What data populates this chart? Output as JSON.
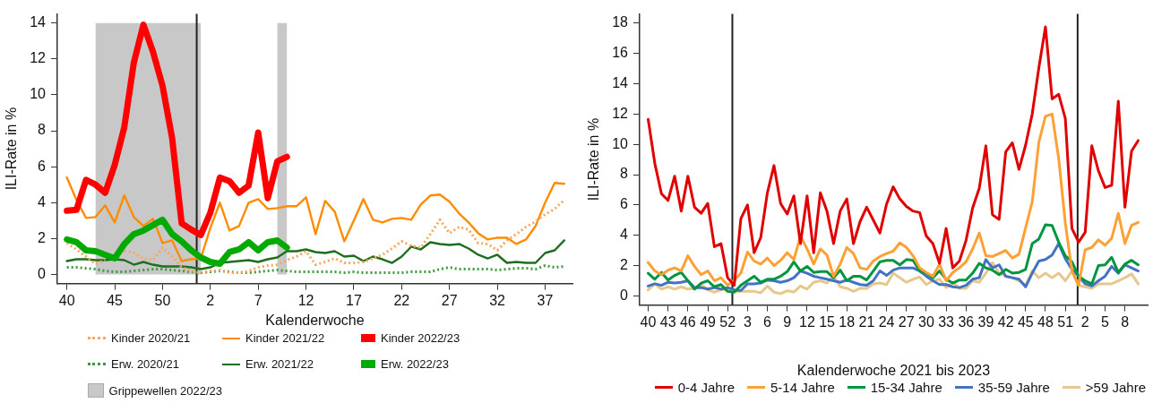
{
  "chart_data": [
    {
      "type": "line",
      "ylabel": "ILI-Rate in %",
      "xlabel": "Kalenderwoche",
      "legend": "bottom",
      "grid": false,
      "marker": "none",
      "x": [
        "2020-09-28",
        "2020-10-05",
        "2020-10-12",
        "2020-10-19",
        "2020-10-26",
        "2020-11-02",
        "2020-11-09",
        "2020-11-16",
        "2020-11-23",
        "2020-11-30",
        "2020-12-07",
        "2020-12-14",
        "2020-12-21",
        "2020-12-28",
        "2021-01-04",
        "2021-01-11",
        "2021-01-18",
        "2021-01-25",
        "2021-02-01",
        "2021-02-08",
        "2021-02-15",
        "2021-02-22",
        "2021-03-01",
        "2021-03-08",
        "2021-03-15",
        "2021-03-22",
        "2021-03-29",
        "2021-04-05",
        "2021-04-12",
        "2021-04-19",
        "2021-04-26",
        "2021-05-03",
        "2021-05-10",
        "2021-05-17",
        "2021-05-24",
        "2021-05-31",
        "2021-06-07",
        "2021-06-14",
        "2021-06-21",
        "2021-06-28",
        "2021-07-05",
        "2021-07-12",
        "2021-07-19",
        "2021-07-26",
        "2021-08-02",
        "2021-08-09",
        "2021-08-16",
        "2021-08-23",
        "2021-08-30",
        "2021-09-06",
        "2021-09-13",
        "2021-09-20",
        "2021-09-27"
      ],
      "xlim": [
        "2020-09-21",
        "2021-10-03"
      ],
      "xticks": [
        {
          "value": "2020-09-28",
          "label": "40"
        },
        {
          "value": "2020-11-02",
          "label": "45"
        },
        {
          "value": "2020-12-07",
          "label": "50"
        },
        {
          "value": "2021-01-11",
          "label": "2"
        },
        {
          "value": "2021-02-15",
          "label": "7"
        },
        {
          "value": "2021-03-22",
          "label": "12"
        },
        {
          "value": "2021-04-26",
          "label": "17"
        },
        {
          "value": "2021-05-31",
          "label": "22"
        },
        {
          "value": "2021-07-05",
          "label": "27"
        },
        {
          "value": "2021-08-09",
          "label": "32"
        },
        {
          "value": "2021-09-13",
          "label": "37"
        }
      ],
      "ylim": [
        -0.5,
        14.5
      ],
      "yticks": [
        0,
        2,
        4,
        6,
        8,
        10,
        12,
        14
      ],
      "series": [
        {
          "name": "Kinder 2020/21",
          "color": "#f7a860",
          "line_style": "dotted",
          "values": [
            1.75,
            1.4,
            1.0,
            0.6,
            0.8,
            null,
            1.3,
            1.2,
            0.9,
            0.8,
            1.5,
            1.0,
            0.4,
            0.2,
            0.1,
            0.2,
            0.25,
            0.1,
            0.1,
            0.2,
            0.4,
            0.5,
            0.55,
            0.8,
            1.0,
            1.3,
            0.55,
            0.7,
            0.9,
            0.65,
            0.65,
            0.7,
            0.9,
            1.1,
            1.45,
            1.85,
            1.6,
            1.5,
            2.25,
            3.05,
            2.3,
            2.65,
            2.5,
            1.75,
            1.7,
            1.35,
            1.9,
            2.25,
            2.65,
            2.95,
            3.35,
            3.65,
            4.15
          ]
        },
        {
          "name": "Kinder 2021/22",
          "color": "#ff8c00",
          "line_style": "solid",
          "values": [
            5.4,
            4.15,
            3.15,
            3.2,
            3.85,
            2.9,
            4.4,
            3.2,
            2.7,
            3.1,
            1.75,
            1.9,
            0.75,
            0.85,
            0.9,
            2.6,
            4.0,
            2.45,
            2.7,
            4.0,
            4.2,
            3.65,
            3.7,
            3.8,
            3.8,
            4.3,
            2.25,
            4.1,
            3.5,
            1.85,
            3.0,
            4.2,
            3.05,
            2.9,
            3.1,
            3.15,
            3.05,
            3.9,
            4.4,
            4.45,
            4.05,
            3.4,
            2.9,
            2.3,
            1.95,
            2.05,
            2.05,
            1.7,
            1.95,
            2.7,
            4.0,
            5.1,
            5.05
          ]
        },
        {
          "name": "Kinder 2022/23",
          "color": "#ff0000",
          "line_style": "solid",
          "values": [
            3.55,
            3.6,
            5.27,
            5.0,
            4.55,
            6.1,
            8.2,
            11.8,
            13.9,
            12.4,
            10.5,
            7.6,
            2.85,
            2.5,
            2.2,
            3.45,
            5.4,
            5.2,
            4.55,
            4.95,
            7.9,
            4.25,
            6.3,
            6.55,
            null,
            null,
            null,
            null,
            null,
            null,
            null,
            null,
            null,
            null,
            null,
            null,
            null,
            null,
            null,
            null,
            null,
            null,
            null,
            null,
            null,
            null,
            null,
            null,
            null,
            null,
            null,
            null,
            null
          ]
        },
        {
          "name": "Erw. 2020/21",
          "color": "#3c9a3c",
          "line_style": "dotted",
          "values": [
            0.4,
            0.4,
            0.35,
            0.3,
            0.2,
            0.15,
            0.15,
            0.2,
            0.25,
            0.3,
            0.3,
            0.25,
            0.2,
            0.15,
            0.1,
            0.15,
            0.2,
            0.15,
            0.1,
            0.1,
            0.15,
            0.2,
            0.25,
            0.2,
            0.15,
            0.15,
            0.15,
            0.15,
            0.15,
            0.1,
            0.15,
            0.1,
            0.1,
            0.1,
            0.1,
            0.1,
            0.15,
            0.15,
            0.15,
            0.3,
            0.4,
            0.3,
            0.3,
            0.3,
            0.3,
            0.25,
            0.3,
            0.35,
            0.35,
            0.3,
            0.5,
            0.4,
            0.45
          ]
        },
        {
          "name": "Erw. 2021/22",
          "color": "#1e6e1e",
          "line_style": "solid",
          "values": [
            0.75,
            0.85,
            0.85,
            0.8,
            0.8,
            0.85,
            0.8,
            0.55,
            0.7,
            0.55,
            0.45,
            0.45,
            0.45,
            0.4,
            0.3,
            0.4,
            0.65,
            0.7,
            0.75,
            0.8,
            0.7,
            0.85,
            0.95,
            1.3,
            1.3,
            1.4,
            1.25,
            1.2,
            1.3,
            1.0,
            1.05,
            0.75,
            1.0,
            0.85,
            0.65,
            1.0,
            1.55,
            1.4,
            1.8,
            1.7,
            1.65,
            1.7,
            1.45,
            1.1,
            0.9,
            1.1,
            0.65,
            0.7,
            0.65,
            0.65,
            1.2,
            1.35,
            1.9
          ]
        },
        {
          "name": "Erw. 2022/23",
          "color": "#00aa00",
          "line_style": "solid",
          "values": [
            1.95,
            1.8,
            1.35,
            1.3,
            1.1,
            0.9,
            1.7,
            2.25,
            2.45,
            2.75,
            3.05,
            2.25,
            1.85,
            1.35,
            0.95,
            0.7,
            0.6,
            1.25,
            1.4,
            1.8,
            1.35,
            1.8,
            1.9,
            1.5,
            null,
            null,
            null,
            null,
            null,
            null,
            null,
            null,
            null,
            null,
            null,
            null,
            null,
            null,
            null,
            null,
            null,
            null,
            null,
            null,
            null,
            null,
            null,
            null,
            null,
            null,
            null,
            null,
            null
          ]
        }
      ],
      "bands": [
        {
          "axis": "x",
          "from": "2020-10-19",
          "to": "2021-01-04",
          "label": "Grippewellen 2022/23",
          "color": "#c8c8c8"
        },
        {
          "axis": "x",
          "from": "2021-03-01",
          "to": "2021-03-08",
          "color": "#c8c8c8"
        }
      ],
      "ref_lines": [
        {
          "axis": "x",
          "value": "2021-01-01",
          "color": "#222222"
        }
      ]
    },
    {
      "type": "line",
      "ylabel": "ILI-Rate in %",
      "xlabel": "Kalenderwoche 2021 bis 2023",
      "legend": "bottom",
      "grid": false,
      "marker": "none",
      "x": [
        "2021-10-04",
        "2021-10-11",
        "2021-10-18",
        "2021-10-25",
        "2021-11-01",
        "2021-11-08",
        "2021-11-15",
        "2021-11-22",
        "2021-11-29",
        "2021-12-06",
        "2021-12-13",
        "2021-12-20",
        "2021-12-27",
        "2022-01-03",
        "2022-01-10",
        "2022-01-17",
        "2022-01-24",
        "2022-01-31",
        "2022-02-07",
        "2022-02-14",
        "2022-02-21",
        "2022-02-28",
        "2022-03-07",
        "2022-03-14",
        "2022-03-21",
        "2022-03-28",
        "2022-04-04",
        "2022-04-11",
        "2022-04-18",
        "2022-04-25",
        "2022-05-02",
        "2022-05-09",
        "2022-05-16",
        "2022-05-23",
        "2022-05-30",
        "2022-06-06",
        "2022-06-13",
        "2022-06-20",
        "2022-06-27",
        "2022-07-04",
        "2022-07-11",
        "2022-07-18",
        "2022-07-25",
        "2022-08-01",
        "2022-08-08",
        "2022-08-15",
        "2022-08-22",
        "2022-08-29",
        "2022-09-05",
        "2022-09-12",
        "2022-09-19",
        "2022-09-26",
        "2022-10-03",
        "2022-10-10",
        "2022-10-17",
        "2022-10-24",
        "2022-10-31",
        "2022-11-07",
        "2022-11-14",
        "2022-11-21",
        "2022-11-28",
        "2022-12-05",
        "2022-12-12",
        "2022-12-19",
        "2022-12-26",
        "2023-01-02",
        "2023-01-09",
        "2023-01-16",
        "2023-01-23",
        "2023-01-30",
        "2023-02-06",
        "2023-02-13",
        "2023-02-20",
        "2023-02-27",
        "2023-03-06"
      ],
      "xlim": [
        "2021-09-25",
        "2023-03-16"
      ],
      "xticks": [
        {
          "value": "2021-10-04",
          "label": "40"
        },
        {
          "value": "2021-10-25",
          "label": "43"
        },
        {
          "value": "2021-11-15",
          "label": "46"
        },
        {
          "value": "2021-12-06",
          "label": "49"
        },
        {
          "value": "2021-12-27",
          "label": "52"
        },
        {
          "value": "2022-01-17",
          "label": "3"
        },
        {
          "value": "2022-02-07",
          "label": "6"
        },
        {
          "value": "2022-02-28",
          "label": "9"
        },
        {
          "value": "2022-03-21",
          "label": "12"
        },
        {
          "value": "2022-04-11",
          "label": "15"
        },
        {
          "value": "2022-05-02",
          "label": "18"
        },
        {
          "value": "2022-05-23",
          "label": "21"
        },
        {
          "value": "2022-06-13",
          "label": "24"
        },
        {
          "value": "2022-07-04",
          "label": "27"
        },
        {
          "value": "2022-07-25",
          "label": "30"
        },
        {
          "value": "2022-08-15",
          "label": "33"
        },
        {
          "value": "2022-09-05",
          "label": "36"
        },
        {
          "value": "2022-09-26",
          "label": "39"
        },
        {
          "value": "2022-10-17",
          "label": "42"
        },
        {
          "value": "2022-11-07",
          "label": "45"
        },
        {
          "value": "2022-11-28",
          "label": "48"
        },
        {
          "value": "2022-12-19",
          "label": "51"
        },
        {
          "value": "2023-01-09",
          "label": "2"
        },
        {
          "value": "2023-01-30",
          "label": "5"
        },
        {
          "value": "2023-02-20",
          "label": "8"
        }
      ],
      "ylim": [
        -0.6,
        18.6
      ],
      "yticks": [
        0,
        2,
        4,
        6,
        8,
        10,
        12,
        14,
        16,
        18
      ],
      "series": [
        {
          "name": "0-4 Jahre",
          "color": "#e00000",
          "values": [
            11.65,
            8.75,
            6.75,
            6.3,
            7.9,
            5.6,
            7.9,
            5.85,
            5.45,
            6.1,
            3.25,
            3.45,
            1.2,
            0.7,
            5.1,
            6.0,
            2.85,
            3.85,
            6.8,
            8.6,
            6.1,
            5.4,
            6.6,
            3.45,
            6.6,
            2.85,
            6.8,
            5.6,
            3.45,
            5.6,
            6.4,
            3.45,
            4.9,
            5.85,
            5.0,
            4.15,
            6.05,
            7.2,
            6.4,
            5.9,
            5.6,
            5.5,
            3.95,
            3.45,
            2.15,
            4.45,
            1.85,
            2.3,
            3.65,
            5.8,
            7.1,
            9.9,
            5.35,
            5.05,
            9.5,
            10.1,
            8.35,
            9.95,
            12.0,
            15.05,
            17.75,
            13.0,
            13.3,
            11.7,
            4.45,
            3.55,
            4.2,
            9.9,
            8.25,
            7.15,
            7.3,
            12.85,
            5.85,
            9.55,
            10.25
          ]
        },
        {
          "name": "5-14 Jahre",
          "color": "#ffa035",
          "values": [
            2.2,
            1.65,
            1.4,
            1.7,
            1.85,
            1.65,
            2.65,
            1.95,
            1.4,
            1.65,
            1.0,
            1.2,
            0.7,
            1.05,
            1.5,
            2.9,
            2.3,
            2.1,
            2.5,
            2.0,
            2.35,
            2.85,
            2.4,
            3.95,
            3.1,
            2.1,
            3.1,
            2.7,
            1.3,
            2.1,
            3.2,
            2.8,
            1.85,
            1.75,
            2.3,
            2.6,
            2.8,
            2.95,
            3.5,
            3.2,
            2.65,
            1.85,
            1.55,
            1.3,
            2.1,
            1.0,
            1.55,
            1.85,
            2.25,
            3.1,
            4.15,
            2.65,
            2.6,
            2.8,
            3.0,
            2.5,
            2.75,
            4.5,
            6.2,
            10.15,
            11.85,
            12.0,
            9.05,
            4.8,
            1.65,
            0.7,
            3.05,
            3.2,
            3.7,
            3.35,
            3.8,
            5.45,
            3.45,
            4.65,
            4.85
          ]
        },
        {
          "name": "15-34 Jahre",
          "color": "#009640",
          "values": [
            1.5,
            1.1,
            1.55,
            1.05,
            1.35,
            1.55,
            1.0,
            0.45,
            0.85,
            1.0,
            0.6,
            0.75,
            0.3,
            0.25,
            0.7,
            1.0,
            1.3,
            0.9,
            1.1,
            1.1,
            1.3,
            1.6,
            2.25,
            1.65,
            1.95,
            1.55,
            1.6,
            1.6,
            1.2,
            1.7,
            1.0,
            1.3,
            1.3,
            1.05,
            1.65,
            2.25,
            2.35,
            2.35,
            2.05,
            2.4,
            2.35,
            1.65,
            1.5,
            1.2,
            1.65,
            1.1,
            0.85,
            1.05,
            1.05,
            1.5,
            2.15,
            1.85,
            1.7,
            1.4,
            1.75,
            1.5,
            1.55,
            1.75,
            3.45,
            3.75,
            4.7,
            4.65,
            3.55,
            2.65,
            2.25,
            1.3,
            1.0,
            0.8,
            2.0,
            2.05,
            2.55,
            1.55,
            2.1,
            2.35,
            2.05
          ]
        },
        {
          "name": "35-59 Jahre",
          "color": "#4472c4",
          "values": [
            0.65,
            0.8,
            0.7,
            0.9,
            0.85,
            0.9,
            1.0,
            0.55,
            0.55,
            0.45,
            0.55,
            0.45,
            0.55,
            0.4,
            0.35,
            0.8,
            0.8,
            0.85,
            1.05,
            1.0,
            0.9,
            1.0,
            1.2,
            1.65,
            1.5,
            1.3,
            1.2,
            1.1,
            1.0,
            0.9,
            1.05,
            0.9,
            0.75,
            0.7,
            1.0,
            1.65,
            1.35,
            1.7,
            1.85,
            1.85,
            1.85,
            1.65,
            1.3,
            1.0,
            0.75,
            0.75,
            0.6,
            0.55,
            0.7,
            1.1,
            1.2,
            2.4,
            1.85,
            2.05,
            1.3,
            1.2,
            1.1,
            0.6,
            1.5,
            2.3,
            2.4,
            2.7,
            3.45,
            2.45,
            1.75,
            1.3,
            0.8,
            0.65,
            1.0,
            1.3,
            1.95,
            1.5,
            2.05,
            1.85,
            1.65
          ]
        },
        {
          "name": ">59 Jahre",
          "color": "#e6c88c",
          "values": [
            0.4,
            0.8,
            0.45,
            0.6,
            0.45,
            0.6,
            0.45,
            0.5,
            0.75,
            0.4,
            0.25,
            0.4,
            0.45,
            0.3,
            0.3,
            0.3,
            0.3,
            0.2,
            0.65,
            0.25,
            0.15,
            0.35,
            0.25,
            0.65,
            0.45,
            0.9,
            1.0,
            0.85,
            1.3,
            0.6,
            0.5,
            0.3,
            0.5,
            0.5,
            0.8,
            0.85,
            0.75,
            1.5,
            1.2,
            0.9,
            1.1,
            1.25,
            0.75,
            1.0,
            1.1,
            0.55,
            0.9,
            0.5,
            0.5,
            1.0,
            0.9,
            1.5,
            2.2,
            1.5,
            1.3,
            1.2,
            1.0,
            0.7,
            1.65,
            1.2,
            1.5,
            1.2,
            1.5,
            1.0,
            1.65,
            0.7,
            0.6,
            0.5,
            0.8,
            0.8,
            0.8,
            1.0,
            1.2,
            1.45,
            0.8
          ]
        }
      ],
      "ref_lines": [
        {
          "axis": "x",
          "value": "2022-01-01",
          "color": "#222222"
        },
        {
          "axis": "x",
          "value": "2023-01-01",
          "color": "#222222"
        }
      ]
    }
  ]
}
